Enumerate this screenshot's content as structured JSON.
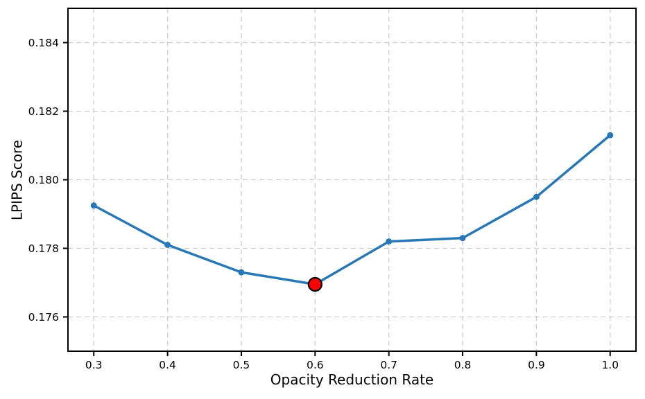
{
  "chart_data": {
    "type": "line",
    "x": [
      0.3,
      0.4,
      0.5,
      0.6,
      0.7,
      0.8,
      0.9,
      1.0
    ],
    "y": [
      0.17925,
      0.1781,
      0.1773,
      0.17695,
      0.1782,
      0.1783,
      0.1795,
      0.1813
    ],
    "highlight_point": {
      "x": 0.6,
      "y": 0.17695
    },
    "title": "",
    "xlabel": "Opacity Reduction Rate",
    "ylabel": "LPIPS Score",
    "xticks": [
      0.3,
      0.4,
      0.5,
      0.6,
      0.7,
      0.8,
      0.9,
      1.0
    ],
    "xtick_labels": [
      "0.3",
      "0.4",
      "0.5",
      "0.6",
      "0.7",
      "0.8",
      "0.9",
      "1.0"
    ],
    "yticks": [
      0.176,
      0.178,
      0.18,
      0.182,
      0.184
    ],
    "ytick_labels": [
      "0.176",
      "0.178",
      "0.180",
      "0.182",
      "0.184"
    ],
    "xlim": [
      0.265,
      1.035
    ],
    "ylim": [
      0.175,
      0.185
    ],
    "grid": true,
    "grid_style": "dashed",
    "legend": "none",
    "colors": {
      "line": "#2878b5",
      "marker": "#2878b5",
      "highlight_fill": "#ff0000",
      "highlight_edge": "#000000",
      "grid": "#cccccc",
      "spine": "#000000",
      "tick_text": "#000000",
      "background": "#ffffff"
    }
  }
}
